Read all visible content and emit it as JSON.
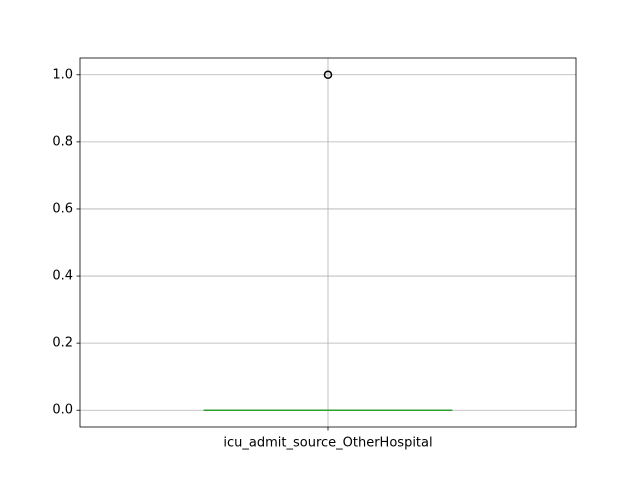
{
  "chart_data": {
    "type": "box",
    "title": "",
    "xlabel": "",
    "ylabel": "",
    "categories": [
      "icu_admit_source_OtherHospital"
    ],
    "boxes": [
      {
        "name": "icu_admit_source_OtherHospital",
        "whisker_low": 0.0,
        "q1": 0.0,
        "median": 0.0,
        "q3": 0.0,
        "whisker_high": 0.0,
        "outliers": [
          1.0
        ]
      }
    ],
    "ylim": [
      -0.05,
      1.05
    ],
    "yticks": [
      0.0,
      0.2,
      0.4,
      0.6,
      0.8,
      1.0
    ],
    "ytick_labels": [
      "0.0",
      "0.2",
      "0.4",
      "0.6",
      "0.8",
      "1.0"
    ],
    "grid": true,
    "colors": {
      "grid": "#b0b0b0",
      "box": "#1f77b4",
      "median": "#2ca02c",
      "outlier": "#000000",
      "axes": "#000000"
    }
  }
}
